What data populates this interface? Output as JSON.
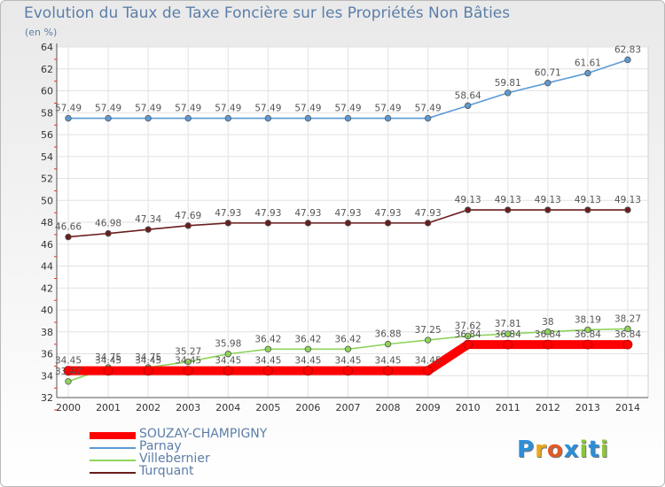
{
  "title": "Evolution du Taux de Taxe Foncière sur les Propriétés Non Bâties",
  "unit": "(en %)",
  "logo": {
    "text": "Proxiti",
    "letters": [
      "P",
      "r",
      "o",
      "x",
      "i",
      "t",
      "i"
    ],
    "colors": [
      "#2b8fd8",
      "#e8a91a",
      "#e05a28",
      "#2b8fd8",
      "#8bc43f",
      "#2b8fd8",
      "#8bc43f"
    ]
  },
  "chart_data": {
    "type": "line",
    "title": "Evolution du Taux de Taxe Foncière sur les Propriétés Non Bâties",
    "ylabel": "(en %)",
    "xlabel": "",
    "ylim": [
      32,
      64
    ],
    "yticks": [
      32,
      34,
      36,
      38,
      40,
      42,
      44,
      46,
      48,
      50,
      52,
      54,
      56,
      58,
      60,
      62,
      64
    ],
    "categories": [
      "2000",
      "2001",
      "2002",
      "2003",
      "2004",
      "2005",
      "2006",
      "2007",
      "2008",
      "2009",
      "2010",
      "2011",
      "2012",
      "2013",
      "2014"
    ],
    "series": [
      {
        "name": "SOUZAY-CHAMPIGNY",
        "color": "#ff0000",
        "values": [
          34.45,
          34.45,
          34.45,
          34.45,
          34.45,
          34.45,
          34.45,
          34.45,
          34.45,
          34.45,
          36.84,
          36.84,
          36.84,
          36.84,
          36.84
        ],
        "labels": [
          "34.45",
          "34.45",
          "34.45",
          "34.45",
          "34.45",
          "34.45",
          "34.45",
          "34.45",
          "34.45",
          "34.45",
          "36.84",
          "36.84",
          "36.84",
          "36.84",
          "36.84"
        ]
      },
      {
        "name": "Parnay",
        "color": "#5b9bd5",
        "values": [
          57.49,
          57.49,
          57.49,
          57.49,
          57.49,
          57.49,
          57.49,
          57.49,
          57.49,
          57.49,
          58.64,
          59.81,
          60.71,
          61.61,
          62.83
        ],
        "labels": [
          "57.49",
          "57.49",
          "57.49",
          "57.49",
          "57.49",
          "57.49",
          "57.49",
          "57.49",
          "57.49",
          "57.49",
          "58.64",
          "59.81",
          "60.71",
          "61.61",
          "62.83"
        ]
      },
      {
        "name": "Villebernier",
        "color": "#8ed45b",
        "values": [
          33.47,
          34.75,
          34.75,
          35.27,
          35.98,
          36.42,
          36.42,
          36.42,
          36.88,
          37.25,
          37.62,
          37.81,
          38,
          38.19,
          38.27
        ],
        "labels": [
          "33.47",
          "34.75",
          "34.75",
          "35.27",
          "35.98",
          "36.42",
          "36.42",
          "36.42",
          "36.88",
          "37.25",
          "37.62",
          "37.81",
          "38",
          "38.19",
          "38.27"
        ]
      },
      {
        "name": "Turquant",
        "color": "#6b1d1d",
        "values": [
          46.66,
          46.98,
          47.34,
          47.69,
          47.93,
          47.93,
          47.93,
          47.93,
          47.93,
          47.93,
          49.13,
          49.13,
          49.13,
          49.13,
          49.13
        ],
        "labels": [
          "46.66",
          "46.98",
          "47.34",
          "47.69",
          "47.93",
          "47.93",
          "47.93",
          "47.93",
          "47.93",
          "47.93",
          "49.13",
          "49.13",
          "49.13",
          "49.13",
          "49.13"
        ]
      }
    ]
  }
}
